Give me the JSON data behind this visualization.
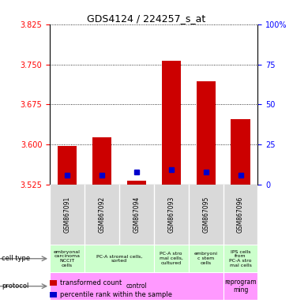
{
  "title": "GDS4124 / 224257_s_at",
  "samples": [
    "GSM867091",
    "GSM867092",
    "GSM867094",
    "GSM867093",
    "GSM867095",
    "GSM867096"
  ],
  "bar_bottom": 3.525,
  "red_tops": [
    3.597,
    3.613,
    3.532,
    3.757,
    3.718,
    3.648
  ],
  "blue_values": [
    3.543,
    3.543,
    3.548,
    3.553,
    3.548,
    3.543
  ],
  "ylim_left": [
    3.525,
    3.825
  ],
  "ylim_right": [
    0,
    100
  ],
  "yticks_left": [
    3.525,
    3.6,
    3.675,
    3.75,
    3.825
  ],
  "yticks_right": [
    0,
    25,
    50,
    75,
    100
  ],
  "cell_types": [
    {
      "label": "embryonal\ncarcinoma\nNCCIT\ncells",
      "color": "#ccffcc",
      "span": [
        0,
        1
      ]
    },
    {
      "label": "PC-A stromal cells,\nsorted",
      "color": "#ccffcc",
      "span": [
        1,
        3
      ]
    },
    {
      "label": "PC-A stro\nmal cells,\ncultured",
      "color": "#ccffcc",
      "span": [
        3,
        4
      ]
    },
    {
      "label": "embryoni\nc stem\ncells",
      "color": "#ccffcc",
      "span": [
        4,
        5
      ]
    },
    {
      "label": "IPS cells\nfrom\nPC-A stro\nmal cells",
      "color": "#ccffcc",
      "span": [
        5,
        6
      ]
    }
  ],
  "protocols": [
    {
      "label": "control",
      "color": "#ff99ff",
      "span": [
        0,
        5
      ]
    },
    {
      "label": "reprogram\nming",
      "color": "#ff99ff",
      "span": [
        5,
        6
      ]
    }
  ],
  "legend_items": [
    {
      "color": "#cc0000",
      "label": "transformed count"
    },
    {
      "color": "#0000cc",
      "label": "percentile rank within the sample"
    }
  ]
}
